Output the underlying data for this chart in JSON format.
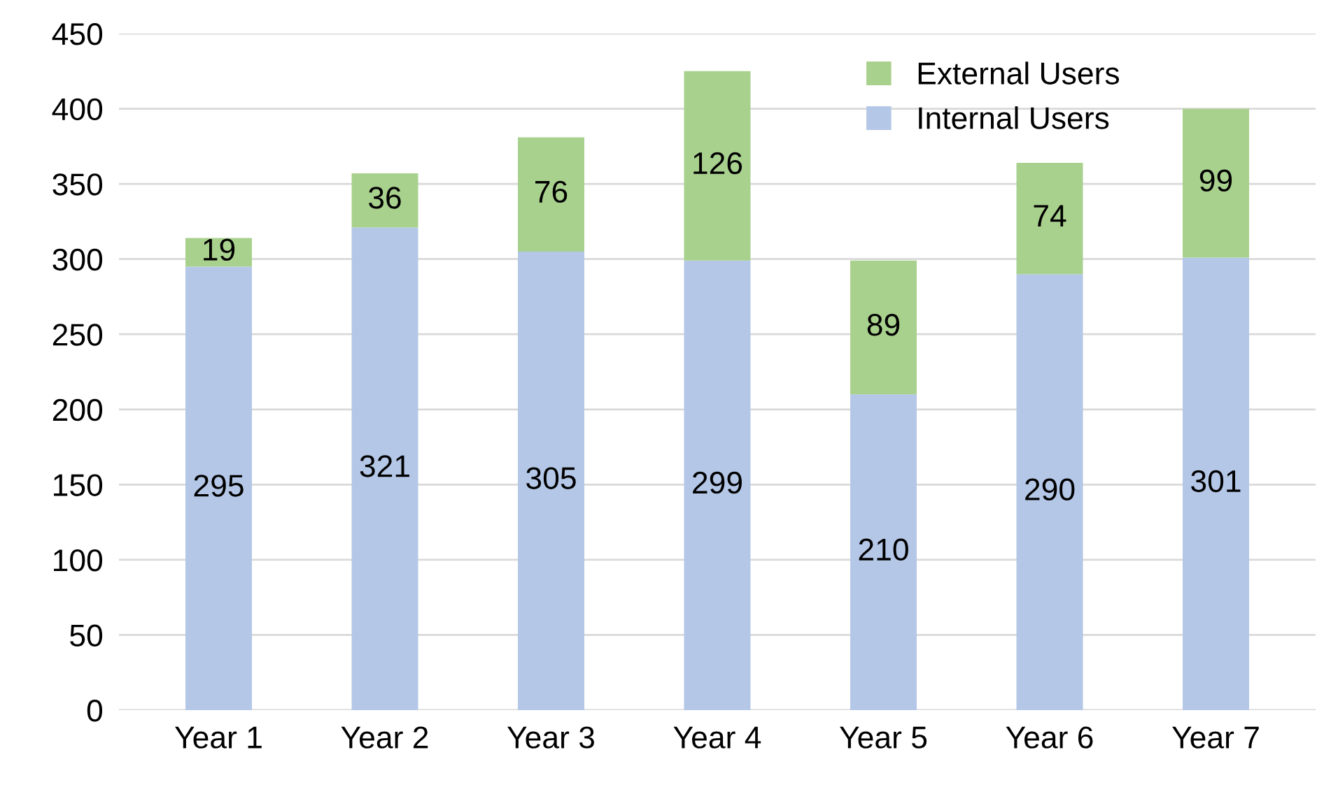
{
  "chart_data": {
    "type": "bar",
    "stacked": true,
    "categories": [
      "Year 1",
      "Year 2",
      "Year 3",
      "Year 4",
      "Year 5",
      "Year 6",
      "Year 7"
    ],
    "series": [
      {
        "name": "Internal Users",
        "color": "#b4c7e7",
        "values": [
          295,
          321,
          305,
          299,
          210,
          290,
          301
        ]
      },
      {
        "name": "External Users",
        "color": "#a9d18e",
        "values": [
          19,
          36,
          76,
          126,
          89,
          74,
          99
        ]
      }
    ],
    "ylim": [
      0,
      450
    ],
    "yticks": [
      0,
      50,
      100,
      150,
      200,
      250,
      300,
      350,
      400,
      450
    ],
    "grid": "y",
    "legend": "top right",
    "data_labels": true
  }
}
